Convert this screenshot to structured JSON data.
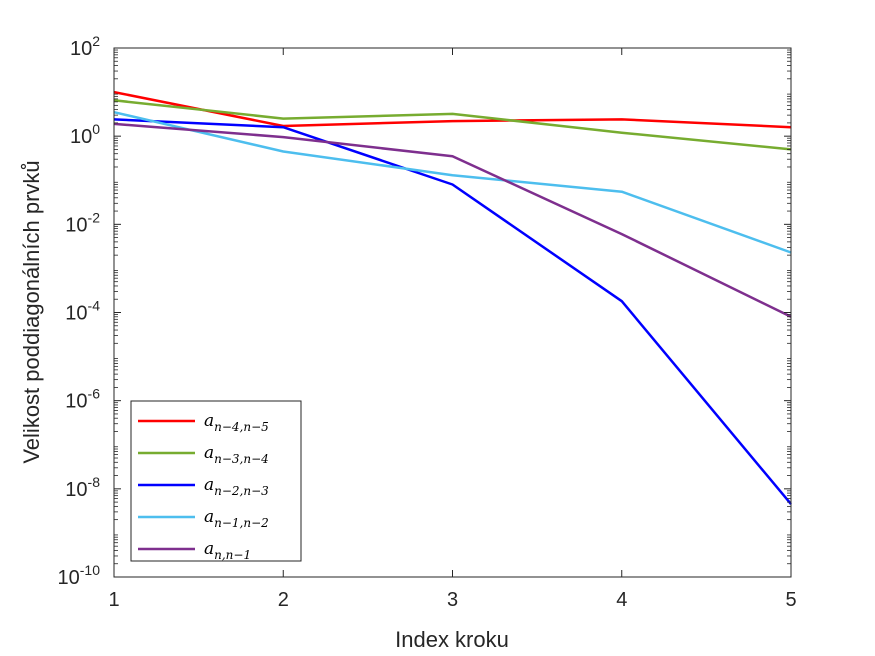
{
  "chart_data": {
    "type": "line",
    "xlabel": "Index kroku",
    "ylabel": "Velikost poddiagonálních prvků",
    "xlim": [
      1,
      5
    ],
    "ylim": [
      1e-10,
      100
    ],
    "yscale": "log",
    "grid": false,
    "legend_position": "bottom-left",
    "x_ticks": [
      "1",
      "2",
      "3",
      "4",
      "5"
    ],
    "y_ticks": [
      {
        "base": "10",
        "exp": "-10",
        "value": 1e-10
      },
      {
        "base": "10",
        "exp": "-8",
        "value": 1e-08
      },
      {
        "base": "10",
        "exp": "-6",
        "value": 1e-06
      },
      {
        "base": "10",
        "exp": "-4",
        "value": 0.0001
      },
      {
        "base": "10",
        "exp": "-2",
        "value": 0.01
      },
      {
        "base": "10",
        "exp": "0",
        "value": 1
      },
      {
        "base": "10",
        "exp": "2",
        "value": 100
      }
    ],
    "x": [
      1,
      2,
      3,
      4,
      5
    ],
    "series": [
      {
        "name": "a",
        "sub": "n−4,n−5",
        "color": "#ff0000",
        "values": [
          10,
          1.7,
          2.2,
          2.4,
          1.6
        ]
      },
      {
        "name": "a",
        "sub": "n−3,n−4",
        "color": "#77ac30",
        "values": [
          6.5,
          2.5,
          3.2,
          1.2,
          0.5
        ]
      },
      {
        "name": "a",
        "sub": "n−2,n−3",
        "color": "#0000ff",
        "values": [
          2.4,
          1.6,
          0.08,
          0.00018,
          4.5e-09
        ]
      },
      {
        "name": "a",
        "sub": "n−1,n−2",
        "color": "#4dbeee",
        "values": [
          3.5,
          0.45,
          0.13,
          0.055,
          0.0023
        ]
      },
      {
        "name": "a",
        "sub": "n,n−1",
        "color": "#7e2f8e",
        "values": [
          1.9,
          0.95,
          0.35,
          0.006,
          8e-05
        ]
      }
    ]
  }
}
